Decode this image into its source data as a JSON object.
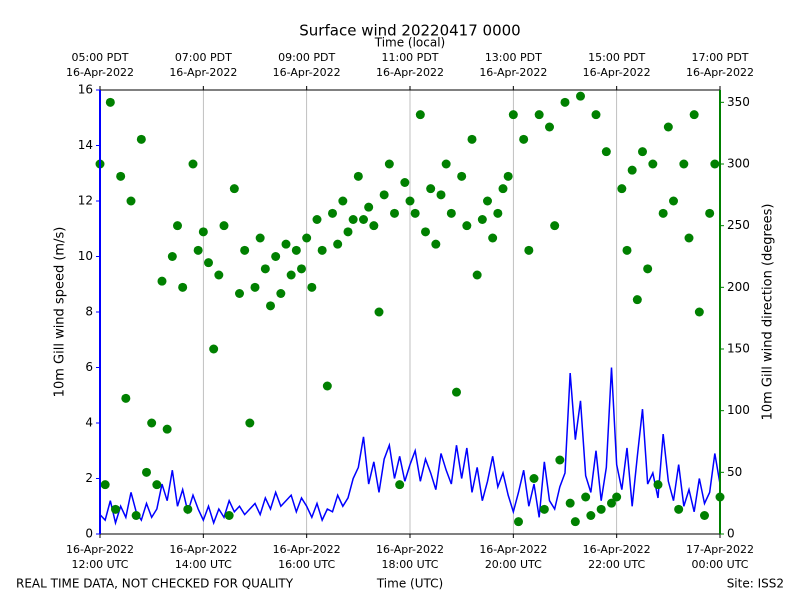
{
  "chart_data": {
    "type": "line",
    "title": "Surface wind 20220417 0000",
    "x_label": "Time (UTC)",
    "x2_label": "Time (local)",
    "y_label": "10m Gill wind speed (m/s)",
    "y2_label": "10m Gill wind direction (degrees)",
    "footer_left": "REAL TIME DATA, NOT CHECKED FOR QUALITY",
    "footer_right": "Site: ISS2",
    "xlim": [
      12,
      24
    ],
    "xticks": [
      {
        "value": 12,
        "label": [
          "16-Apr-2022",
          "12:00 UTC"
        ]
      },
      {
        "value": 14,
        "label": [
          "16-Apr-2022",
          "14:00 UTC"
        ]
      },
      {
        "value": 16,
        "label": [
          "16-Apr-2022",
          "16:00 UTC"
        ]
      },
      {
        "value": 18,
        "label": [
          "16-Apr-2022",
          "18:00 UTC"
        ]
      },
      {
        "value": 20,
        "label": [
          "16-Apr-2022",
          "20:00 UTC"
        ]
      },
      {
        "value": 22,
        "label": [
          "16-Apr-2022",
          "22:00 UTC"
        ]
      },
      {
        "value": 24,
        "label": [
          "17-Apr-2022",
          "00:00 UTC"
        ]
      }
    ],
    "x2ticks": [
      {
        "value": 12,
        "label": [
          "05:00 PDT",
          "16-Apr-2022"
        ]
      },
      {
        "value": 14,
        "label": [
          "07:00 PDT",
          "16-Apr-2022"
        ]
      },
      {
        "value": 16,
        "label": [
          "09:00 PDT",
          "16-Apr-2022"
        ]
      },
      {
        "value": 18,
        "label": [
          "11:00 PDT",
          "16-Apr-2022"
        ]
      },
      {
        "value": 20,
        "label": [
          "13:00 PDT",
          "16-Apr-2022"
        ]
      },
      {
        "value": 22,
        "label": [
          "15:00 PDT",
          "16-Apr-2022"
        ]
      },
      {
        "value": 24,
        "label": [
          "17:00 PDT",
          "16-Apr-2022"
        ]
      }
    ],
    "xgrid": true,
    "ylim": [
      0,
      16
    ],
    "yticks": [
      0,
      2,
      4,
      6,
      8,
      10,
      12,
      14,
      16
    ],
    "y_color": "#0000ff",
    "y2lim": [
      0,
      360
    ],
    "y2ticks": [
      0,
      50,
      100,
      150,
      200,
      250,
      300,
      350
    ],
    "y2_color": "#008000",
    "x": [
      12,
      12.1,
      12.2,
      12.3,
      12.4,
      12.5,
      12.6,
      12.7,
      12.8,
      12.9,
      13,
      13.1,
      13.2,
      13.3,
      13.4,
      13.5,
      13.6,
      13.7,
      13.8,
      13.9,
      14,
      14.1,
      14.2,
      14.3,
      14.4,
      14.5,
      14.6,
      14.7,
      14.8,
      14.9,
      15,
      15.1,
      15.2,
      15.3,
      15.4,
      15.5,
      15.6,
      15.7,
      15.8,
      15.9,
      16,
      16.1,
      16.2,
      16.3,
      16.4,
      16.5,
      16.6,
      16.7,
      16.8,
      16.9,
      17,
      17.1,
      17.2,
      17.3,
      17.4,
      17.5,
      17.6,
      17.7,
      17.8,
      17.9,
      18,
      18.1,
      18.2,
      18.3,
      18.4,
      18.5,
      18.6,
      18.7,
      18.8,
      18.9,
      19,
      19.1,
      19.2,
      19.3,
      19.4,
      19.5,
      19.6,
      19.7,
      19.8,
      19.9,
      20,
      20.1,
      20.2,
      20.3,
      20.4,
      20.5,
      20.6,
      20.7,
      20.8,
      20.9,
      21,
      21.1,
      21.2,
      21.3,
      21.4,
      21.5,
      21.6,
      21.7,
      21.8,
      21.9,
      22,
      22.1,
      22.2,
      22.3,
      22.4,
      22.5,
      22.6,
      22.7,
      22.8,
      22.9,
      23,
      23.1,
      23.2,
      23.3,
      23.4,
      23.5,
      23.6,
      23.7,
      23.8,
      23.9,
      24
    ],
    "series": [
      {
        "type": "line",
        "color": "#0000ff",
        "values": [
          0.7,
          0.5,
          1.2,
          0.4,
          1.0,
          0.6,
          1.5,
          0.8,
          0.5,
          1.1,
          0.6,
          0.9,
          1.8,
          1.2,
          2.3,
          1.0,
          1.6,
          0.8,
          1.4,
          0.9,
          0.5,
          1.0,
          0.4,
          0.9,
          0.6,
          1.2,
          0.8,
          1.0,
          0.7,
          0.9,
          1.1,
          0.7,
          1.3,
          0.9,
          1.5,
          1.0,
          1.2,
          1.4,
          0.8,
          1.3,
          1.0,
          0.6,
          1.1,
          0.5,
          0.9,
          0.8,
          1.4,
          1.0,
          1.3,
          2.0,
          2.4,
          3.5,
          1.8,
          2.6,
          1.5,
          2.7,
          3.2,
          2.0,
          2.8,
          1.9,
          2.5,
          3.0,
          1.9,
          2.7,
          2.2,
          1.6,
          2.9,
          2.3,
          1.8,
          3.2,
          2.0,
          3.1,
          1.5,
          2.4,
          1.2,
          1.9,
          2.8,
          1.7,
          2.2,
          1.4,
          0.8,
          1.5,
          2.3,
          1.0,
          1.8,
          0.6,
          2.6,
          1.2,
          0.9,
          1.7,
          2.2,
          5.8,
          3.4,
          4.8,
          2.1,
          1.5,
          3.0,
          1.2,
          2.4,
          6.0,
          2.5,
          1.6,
          3.1,
          1.0,
          2.8,
          4.5,
          1.8,
          2.2,
          1.3,
          3.6,
          1.9,
          1.2,
          2.5,
          1.0,
          1.6,
          0.8,
          2.0,
          1.1,
          1.5,
          2.9,
          1.8
        ]
      },
      {
        "type": "scatter",
        "axis": "y2",
        "color": "#008000",
        "values": [
          300,
          40,
          350,
          20,
          290,
          110,
          270,
          15,
          320,
          50,
          90,
          40,
          205,
          85,
          225,
          250,
          200,
          20,
          300,
          230,
          245,
          220,
          150,
          210,
          250,
          15,
          280,
          195,
          230,
          90,
          200,
          240,
          215,
          185,
          225,
          195,
          235,
          210,
          230,
          215,
          240,
          200,
          255,
          230,
          120,
          260,
          235,
          270,
          245,
          255,
          290,
          255,
          265,
          250,
          180,
          275,
          300,
          260,
          40,
          285,
          270,
          260,
          340,
          245,
          280,
          235,
          275,
          300,
          260,
          115,
          290,
          250,
          320,
          210,
          255,
          270,
          240,
          260,
          280,
          290,
          340,
          10,
          320,
          230,
          45,
          340,
          20,
          330,
          250,
          60,
          350,
          25,
          10,
          355,
          30,
          15,
          340,
          20,
          310,
          25,
          30,
          280,
          230,
          295,
          190,
          310,
          215,
          300,
          40,
          260,
          330,
          270,
          20,
          300,
          240,
          340,
          180,
          15,
          260,
          300,
          30
        ]
      }
    ]
  }
}
